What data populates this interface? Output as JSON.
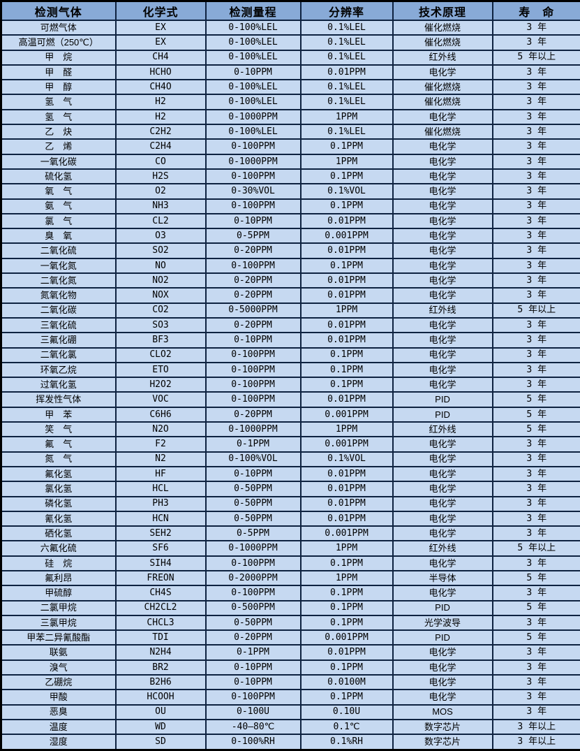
{
  "colors": {
    "header_bg": "#88aad7",
    "row_bg": "#c6d9f1",
    "grid_border": "#0e2240",
    "outer_border": "#000000",
    "text": "#000000"
  },
  "table": {
    "headers": [
      "检测气体",
      "化学式",
      "检测量程",
      "分辨率",
      "技术原理",
      "寿　命"
    ],
    "rows": [
      [
        "可燃气体",
        "EX",
        "0-100%LEL",
        "0.1%LEL",
        "催化燃烧",
        "3 年"
      ],
      [
        "高温可燃（250℃）",
        "EX",
        "0-100%LEL",
        "0.1%LEL",
        "催化燃烧",
        "3 年"
      ],
      [
        "甲　烷",
        "CH4",
        "0-100%LEL",
        "0.1%LEL",
        "红外线",
        "5 年以上"
      ],
      [
        "甲　醛",
        "HCHO",
        "0-10PPM",
        "0.01PPM",
        "电化学",
        "3 年"
      ],
      [
        "甲　醇",
        "CH4O",
        "0-100%LEL",
        "0.1%LEL",
        "催化燃烧",
        "3 年"
      ],
      [
        "氢　气",
        "H2",
        "0-100%LEL",
        "0.1%LEL",
        "催化燃烧",
        "3 年"
      ],
      [
        "氢　气",
        "H2",
        "0-1000PPM",
        "1PPM",
        "电化学",
        "3 年"
      ],
      [
        "乙　炔",
        "C2H2",
        "0-100%LEL",
        "0.1%LEL",
        "催化燃烧",
        "3 年"
      ],
      [
        "乙　烯",
        "C2H4",
        "0-100PPM",
        "0.1PPM",
        "电化学",
        "3 年"
      ],
      [
        "一氧化碳",
        "CO",
        "0-1000PPM",
        "1PPM",
        "电化学",
        "3 年"
      ],
      [
        "硫化氢",
        "H2S",
        "0-100PPM",
        "0.1PPM",
        "电化学",
        "3 年"
      ],
      [
        "氧　气",
        "O2",
        "0-30%VOL",
        "0.1%VOL",
        "电化学",
        "3 年"
      ],
      [
        "氨　气",
        "NH3",
        "0-100PPM",
        "0.1PPM",
        "电化学",
        "3 年"
      ],
      [
        "氯　气",
        "CL2",
        "0-10PPM",
        "0.01PPM",
        "电化学",
        "3 年"
      ],
      [
        "臭　氧",
        "O3",
        "0-5PPM",
        "0.001PPM",
        "电化学",
        "3 年"
      ],
      [
        "二氧化硫",
        "SO2",
        "0-20PPM",
        "0.01PPM",
        "电化学",
        "3 年"
      ],
      [
        "一氧化氮",
        "NO",
        "0-100PPM",
        "0.1PPM",
        "电化学",
        "3 年"
      ],
      [
        "二氧化氮",
        "NO2",
        "0-20PPM",
        "0.01PPM",
        "电化学",
        "3 年"
      ],
      [
        "氮氧化物",
        "NOX",
        "0-20PPM",
        "0.01PPM",
        "电化学",
        "3 年"
      ],
      [
        "二氧化碳",
        "CO2",
        "0-5000PPM",
        "1PPM",
        "红外线",
        "5 年以上"
      ],
      [
        "三氧化硫",
        "SO3",
        "0-20PPM",
        "0.01PPM",
        "电化学",
        "3 年"
      ],
      [
        "三氟化硼",
        "BF3",
        "0-10PPM",
        "0.01PPM",
        "电化学",
        "3 年"
      ],
      [
        "二氧化氯",
        "CLO2",
        "0-100PPM",
        "0.1PPM",
        "电化学",
        "3 年"
      ],
      [
        "环氧乙烷",
        "ETO",
        "0-100PPM",
        "0.1PPM",
        "电化学",
        "3 年"
      ],
      [
        "过氧化氢",
        "H2O2",
        "0-100PPM",
        "0.1PPM",
        "电化学",
        "3 年"
      ],
      [
        "挥发性气体",
        "VOC",
        "0-100PPM",
        "0.01PPM",
        "PID",
        "5 年"
      ],
      [
        "甲　苯",
        "C6H6",
        "0-20PPM",
        "0.001PPM",
        "PID",
        "5 年"
      ],
      [
        "笑　气",
        "N2O",
        "0-1000PPM",
        "1PPM",
        "红外线",
        "5 年"
      ],
      [
        "氟　气",
        "F2",
        "0-1PPM",
        "0.001PPM",
        "电化学",
        "3 年"
      ],
      [
        "氮　气",
        "N2",
        "0-100%VOL",
        "0.1%VOL",
        "电化学",
        "3 年"
      ],
      [
        "氟化氢",
        "HF",
        "0-10PPM",
        "0.01PPM",
        "电化学",
        "3 年"
      ],
      [
        "氯化氢",
        "HCL",
        "0-50PPM",
        "0.01PPM",
        "电化学",
        "3 年"
      ],
      [
        "磷化氢",
        "PH3",
        "0-50PPM",
        "0.01PPM",
        "电化学",
        "3 年"
      ],
      [
        "氰化氢",
        "HCN",
        "0-50PPM",
        "0.01PPM",
        "电化学",
        "3 年"
      ],
      [
        "硒化氢",
        "SEH2",
        "0-5PPM",
        "0.001PPM",
        "电化学",
        "3 年"
      ],
      [
        "六氟化硫",
        "SF6",
        "0-1000PPM",
        "1PPM",
        "红外线",
        "5 年以上"
      ],
      [
        "硅　烷",
        "SIH4",
        "0-100PPM",
        "0.1PPM",
        "电化学",
        "3 年"
      ],
      [
        "氟利昂",
        "FREON",
        "0-2000PPM",
        "1PPM",
        "半导体",
        "5 年"
      ],
      [
        "甲硫醇",
        "CH4S",
        "0-100PPM",
        "0.1PPM",
        "电化学",
        "3 年"
      ],
      [
        "二氯甲烷",
        "CH2CL2",
        "0-500PPM",
        "0.1PPM",
        "PID",
        "5 年"
      ],
      [
        "三氯甲烷",
        "CHCL3",
        "0-50PPM",
        "0.1PPM",
        "光学波导",
        "3 年"
      ],
      [
        "甲苯二异氰酸酯",
        "TDI",
        "0-20PPM",
        "0.001PPM",
        "PID",
        "5 年"
      ],
      [
        "联氨",
        "N2H4",
        "0-1PPM",
        "0.01PPM",
        "电化学",
        "3 年"
      ],
      [
        "溴气",
        "BR2",
        "0-10PPM",
        "0.1PPM",
        "电化学",
        "3 年"
      ],
      [
        "乙硼烷",
        "B2H6",
        "0-10PPM",
        "0.0100M",
        "电化学",
        "3 年"
      ],
      [
        "甲酸",
        "HCOOH",
        "0-100PPM",
        "0.1PPM",
        "电化学",
        "3 年"
      ],
      [
        "恶臭",
        "OU",
        "0-100U",
        "0.10U",
        "MOS",
        "3 年"
      ],
      [
        "温度",
        "WD",
        "-40—80℃",
        "0.1℃",
        "数字芯片",
        "3 年以上"
      ],
      [
        "湿度",
        "SD",
        "0-100%RH",
        "0.1%RH",
        "数字芯片",
        "3 年以上"
      ]
    ]
  }
}
